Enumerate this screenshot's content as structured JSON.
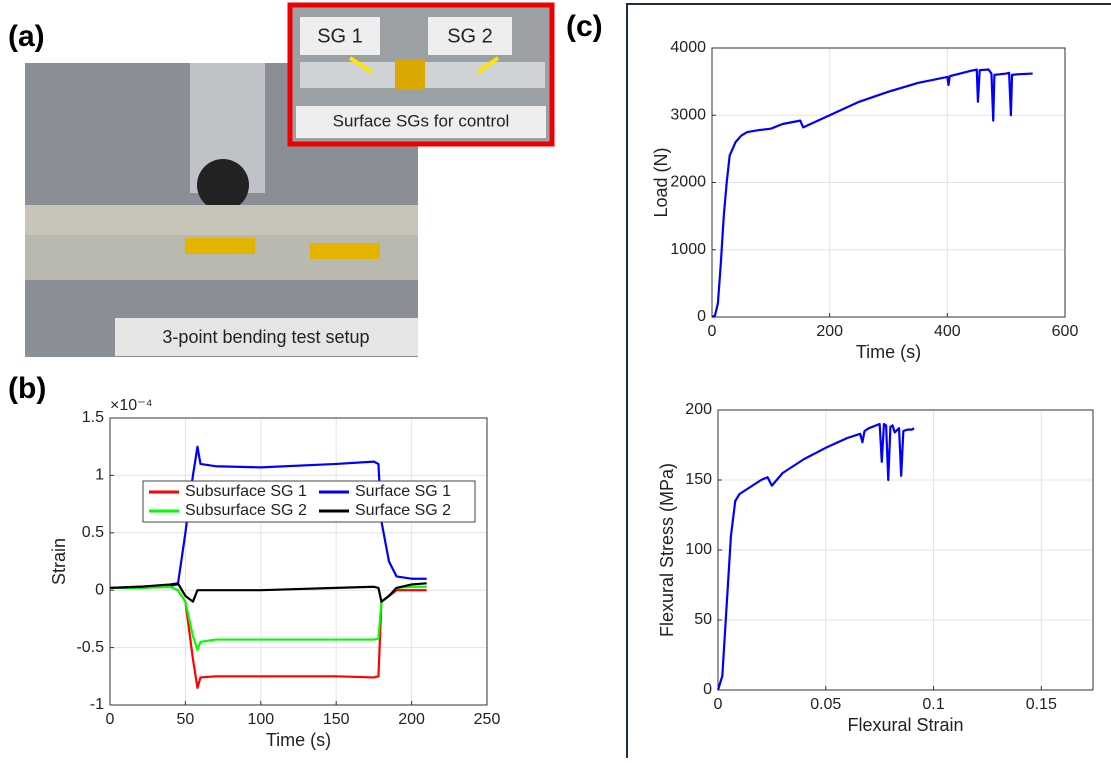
{
  "panel_labels": {
    "a": "(a)",
    "b": "(b)",
    "c": "(c)"
  },
  "photo": {
    "inset_labels": [
      "SG 1",
      "SG 2"
    ],
    "inset_caption": "Surface SGs for control",
    "caption": "3-point bending test setup"
  },
  "chart_data": [
    {
      "type": "line",
      "x_label": "Time (s)",
      "y_label": "Strain",
      "y_multiplier": "×10⁻⁴",
      "x": [
        0,
        20,
        40,
        45,
        50,
        55,
        58,
        60,
        70,
        100,
        150,
        175,
        178,
        180,
        185,
        190,
        200,
        210
      ],
      "series": [
        {
          "name": "Subsurface SG 1",
          "color": "#ff0000",
          "values": [
            0.02,
            0.02,
            0.03,
            0,
            -0.1,
            -0.6,
            -0.85,
            -0.76,
            -0.75,
            -0.75,
            -0.75,
            -0.76,
            -0.75,
            -0.1,
            -0.05,
            0,
            0,
            0
          ]
        },
        {
          "name": "Surface SG 1",
          "color": "#0000ff",
          "values": [
            0.02,
            0.03,
            0.04,
            0.05,
            0.5,
            1.0,
            1.25,
            1.1,
            1.08,
            1.07,
            1.1,
            1.12,
            1.1,
            0.6,
            0.25,
            0.12,
            0.1,
            0.1
          ]
        },
        {
          "name": "Subsurface SG 2",
          "color": "#00ff00",
          "values": [
            0.02,
            0.02,
            0.03,
            0,
            -0.1,
            -0.4,
            -0.52,
            -0.45,
            -0.43,
            -0.43,
            -0.43,
            -0.43,
            -0.42,
            -0.1,
            -0.05,
            0.02,
            0.03,
            0.03
          ]
        },
        {
          "name": "Surface SG 2",
          "color": "#000000",
          "values": [
            0.02,
            0.03,
            0.05,
            0.06,
            -0.05,
            -0.1,
            0,
            0,
            0,
            0,
            0.02,
            0.03,
            0.02,
            -0.1,
            -0.05,
            0.02,
            0.05,
            0.06
          ]
        }
      ],
      "xlim": [
        0,
        250
      ],
      "xticks": [
        0,
        50,
        100,
        150,
        200,
        250
      ],
      "ylim": [
        -1,
        1.5
      ],
      "yticks": [
        -1,
        -0.5,
        0,
        0.5,
        1,
        1.5
      ],
      "grid": true,
      "legend": "top"
    },
    {
      "type": "line",
      "x_label": "Time (s)",
      "y_label": "Load (N)",
      "x": [
        0,
        5,
        10,
        15,
        20,
        25,
        30,
        40,
        50,
        60,
        80,
        100,
        120,
        150,
        155,
        200,
        250,
        300,
        350,
        400,
        402,
        404,
        440,
        450,
        452,
        455,
        470,
        475,
        478,
        480,
        500,
        505,
        508,
        510,
        520,
        545
      ],
      "series": [
        {
          "color": "#0000ff",
          "values": [
            0,
            20,
            200,
            800,
            1500,
            2000,
            2400,
            2600,
            2700,
            2750,
            2780,
            2800,
            2870,
            2920,
            2820,
            3000,
            3200,
            3350,
            3480,
            3570,
            3450,
            3580,
            3660,
            3680,
            3200,
            3670,
            3680,
            3620,
            2920,
            3600,
            3620,
            3630,
            3000,
            3600,
            3610,
            3620
          ]
        }
      ],
      "xlim": [
        0,
        600
      ],
      "xticks": [
        0,
        200,
        400,
        600
      ],
      "ylim": [
        0,
        4000
      ],
      "yticks": [
        0,
        1000,
        2000,
        3000,
        4000
      ],
      "grid": true
    },
    {
      "type": "line",
      "x_label": "Flexural Strain",
      "y_label": "Flexural Stress (MPa)",
      "x": [
        0,
        0.002,
        0.004,
        0.006,
        0.008,
        0.01,
        0.015,
        0.02,
        0.023,
        0.025,
        0.03,
        0.04,
        0.05,
        0.06,
        0.066,
        0.067,
        0.068,
        0.07,
        0.075,
        0.076,
        0.077,
        0.078,
        0.079,
        0.08,
        0.081,
        0.082,
        0.084,
        0.085,
        0.086,
        0.088,
        0.09,
        0.091
      ],
      "series": [
        {
          "color": "#0000ff",
          "values": [
            0,
            10,
            60,
            110,
            135,
            140,
            145,
            150,
            152,
            146,
            155,
            165,
            173,
            180,
            183,
            177,
            185,
            187,
            190,
            163,
            190,
            189,
            150,
            188,
            189,
            184,
            187,
            153,
            185,
            186,
            186,
            187
          ]
        }
      ],
      "xlim": [
        0,
        0.174
      ],
      "xticks": [
        0,
        0.05,
        0.1,
        0.15
      ],
      "ylim": [
        0,
        200
      ],
      "yticks": [
        0,
        50,
        100,
        150,
        200
      ],
      "grid": true
    }
  ]
}
